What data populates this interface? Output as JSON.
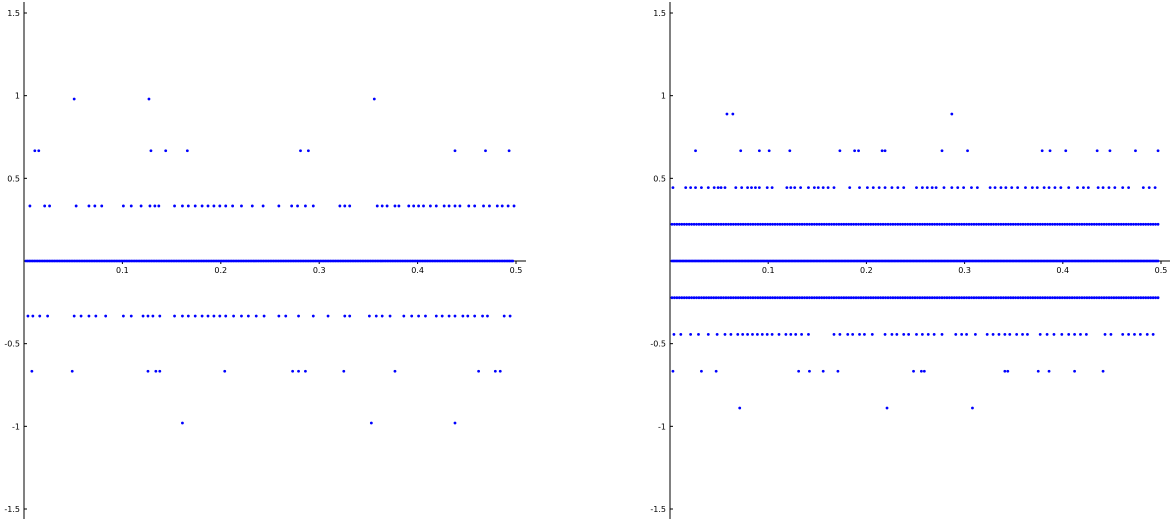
{
  "chart_data": [
    {
      "type": "scatter",
      "title": "",
      "xlabel": "",
      "ylabel": "",
      "xlim": [
        0,
        0.5
      ],
      "ylim": [
        -1.5,
        1.5
      ],
      "x_ticks": [
        0.1,
        0.2,
        0.3,
        0.4,
        0.5
      ],
      "y_ticks": [
        1.5,
        1,
        0.5,
        -0.5,
        -1,
        -1.5
      ],
      "x_tick_labels": [
        "0.1",
        "0.2",
        "0.3",
        "0.4",
        "0.5"
      ],
      "y_tick_labels": [
        "1.5",
        "1",
        "0.5",
        "-0.5",
        "-1",
        "-1.5"
      ],
      "grid": false,
      "point_color": "#0000ff",
      "series": [
        {
          "bands": [
            {
              "y": 0,
              "x_start": 0.002,
              "x_end": 0.498,
              "step": 0.0017
            },
            {
              "y": 0.333,
              "x": [
                0.006,
                0.021,
                0.026,
                0.053,
                0.066,
                0.072,
                0.079,
                0.101,
                0.109,
                0.119,
                0.128,
                0.133,
                0.137,
                0.153,
                0.161,
                0.167,
                0.174,
                0.181,
                0.187,
                0.193,
                0.199,
                0.205,
                0.212,
                0.221,
                0.232,
                0.243,
                0.259,
                0.272,
                0.278,
                0.286,
                0.294,
                0.321,
                0.326,
                0.331,
                0.359,
                0.364,
                0.369,
                0.377,
                0.381,
                0.391,
                0.396,
                0.401,
                0.406,
                0.413,
                0.419,
                0.427,
                0.432,
                0.438,
                0.443,
                0.452,
                0.458,
                0.467,
                0.473,
                0.481,
                0.486,
                0.492,
                0.498
              ]
            },
            {
              "y": -0.333,
              "x": [
                0.004,
                0.009,
                0.016,
                0.024,
                0.051,
                0.058,
                0.066,
                0.073,
                0.083,
                0.101,
                0.109,
                0.121,
                0.126,
                0.131,
                0.138,
                0.153,
                0.161,
                0.167,
                0.174,
                0.181,
                0.187,
                0.193,
                0.199,
                0.205,
                0.213,
                0.221,
                0.228,
                0.236,
                0.244,
                0.259,
                0.266,
                0.279,
                0.294,
                0.309,
                0.326,
                0.331,
                0.351,
                0.358,
                0.364,
                0.372,
                0.386,
                0.394,
                0.401,
                0.408,
                0.419,
                0.425,
                0.432,
                0.438,
                0.446,
                0.451,
                0.458,
                0.466,
                0.471,
                0.488,
                0.494
              ]
            },
            {
              "y": 0.667,
              "x": [
                0.011,
                0.015,
                0.129,
                0.144,
                0.166,
                0.281,
                0.289,
                0.438,
                0.469,
                0.493
              ]
            },
            {
              "y": -0.667,
              "x": [
                0.008,
                0.049,
                0.126,
                0.134,
                0.138,
                0.204,
                0.273,
                0.279,
                0.286,
                0.325,
                0.377,
                0.462,
                0.479,
                0.484
              ]
            },
            {
              "y": 0.98,
              "x": [
                0.051,
                0.127,
                0.356
              ]
            },
            {
              "y": -0.98,
              "x": [
                0.161,
                0.353,
                0.438
              ]
            }
          ]
        }
      ]
    },
    {
      "type": "scatter",
      "title": "",
      "xlabel": "",
      "ylabel": "",
      "xlim": [
        0,
        0.5
      ],
      "ylim": [
        -1.5,
        1.5
      ],
      "x_ticks": [
        0.1,
        0.2,
        0.3,
        0.4,
        0.5
      ],
      "y_ticks": [
        1.5,
        1,
        0.5,
        -0.5,
        -1,
        -1.5
      ],
      "x_tick_labels": [
        "0.1",
        "0.2",
        "0.3",
        "0.4",
        "0.5"
      ],
      "y_tick_labels": [
        "1.5",
        "1",
        "0.5",
        "-0.5",
        "-1",
        "-1.5"
      ],
      "grid": false,
      "point_color": "#0000ff",
      "series": [
        {
          "bands": [
            {
              "y": 0,
              "x_start": 0.002,
              "x_end": 0.498,
              "step": 0.0015
            },
            {
              "y": 0.222,
              "x_start": 0.002,
              "x_end": 0.498,
              "step": 0.0025
            },
            {
              "y": -0.222,
              "x_start": 0.002,
              "x_end": 0.498,
              "step": 0.0025
            },
            {
              "y": 0.444,
              "x": [
                0.003,
                0.016,
                0.021,
                0.026,
                0.032,
                0.039,
                0.045,
                0.049,
                0.052,
                0.056,
                0.067,
                0.073,
                0.079,
                0.083,
                0.087,
                0.091,
                0.099,
                0.104,
                0.119,
                0.123,
                0.127,
                0.133,
                0.141,
                0.147,
                0.151,
                0.156,
                0.161,
                0.167,
                0.183,
                0.193,
                0.201,
                0.207,
                0.213,
                0.219,
                0.226,
                0.232,
                0.238,
                0.251,
                0.257,
                0.262,
                0.267,
                0.271,
                0.279,
                0.287,
                0.293,
                0.299,
                0.307,
                0.313,
                0.326,
                0.331,
                0.337,
                0.342,
                0.348,
                0.354,
                0.362,
                0.369,
                0.374,
                0.381,
                0.386,
                0.392,
                0.398,
                0.406,
                0.415,
                0.421,
                0.426,
                0.436,
                0.441,
                0.447,
                0.453,
                0.461,
                0.467,
                0.482,
                0.488,
                0.494
              ]
            },
            {
              "y": -0.444,
              "x": [
                0.004,
                0.011,
                0.021,
                0.029,
                0.039,
                0.048,
                0.056,
                0.062,
                0.069,
                0.074,
                0.079,
                0.084,
                0.089,
                0.094,
                0.099,
                0.104,
                0.111,
                0.118,
                0.123,
                0.128,
                0.134,
                0.141,
                0.167,
                0.173,
                0.181,
                0.186,
                0.193,
                0.198,
                0.206,
                0.219,
                0.226,
                0.231,
                0.238,
                0.243,
                0.251,
                0.257,
                0.263,
                0.269,
                0.277,
                0.291,
                0.297,
                0.302,
                0.311,
                0.323,
                0.329,
                0.335,
                0.341,
                0.346,
                0.353,
                0.359,
                0.364,
                0.377,
                0.384,
                0.391,
                0.399,
                0.406,
                0.412,
                0.418,
                0.424,
                0.443,
                0.449,
                0.461,
                0.467,
                0.473,
                0.479,
                0.486,
                0.492
              ]
            },
            {
              "y": 0.667,
              "x": [
                0.026,
                0.072,
                0.091,
                0.101,
                0.122,
                0.173,
                0.188,
                0.192,
                0.216,
                0.219,
                0.277,
                0.303,
                0.379,
                0.387,
                0.403,
                0.435,
                0.448,
                0.474,
                0.497
              ]
            },
            {
              "y": -0.667,
              "x": [
                0.003,
                0.032,
                0.047,
                0.131,
                0.142,
                0.156,
                0.171,
                0.248,
                0.256,
                0.259,
                0.341,
                0.344,
                0.375,
                0.386,
                0.412,
                0.441
              ]
            },
            {
              "y": 0.889,
              "x": [
                0.058,
                0.064,
                0.287
              ]
            },
            {
              "y": -0.889,
              "x": [
                0.071,
                0.221,
                0.308
              ]
            }
          ]
        }
      ]
    }
  ]
}
